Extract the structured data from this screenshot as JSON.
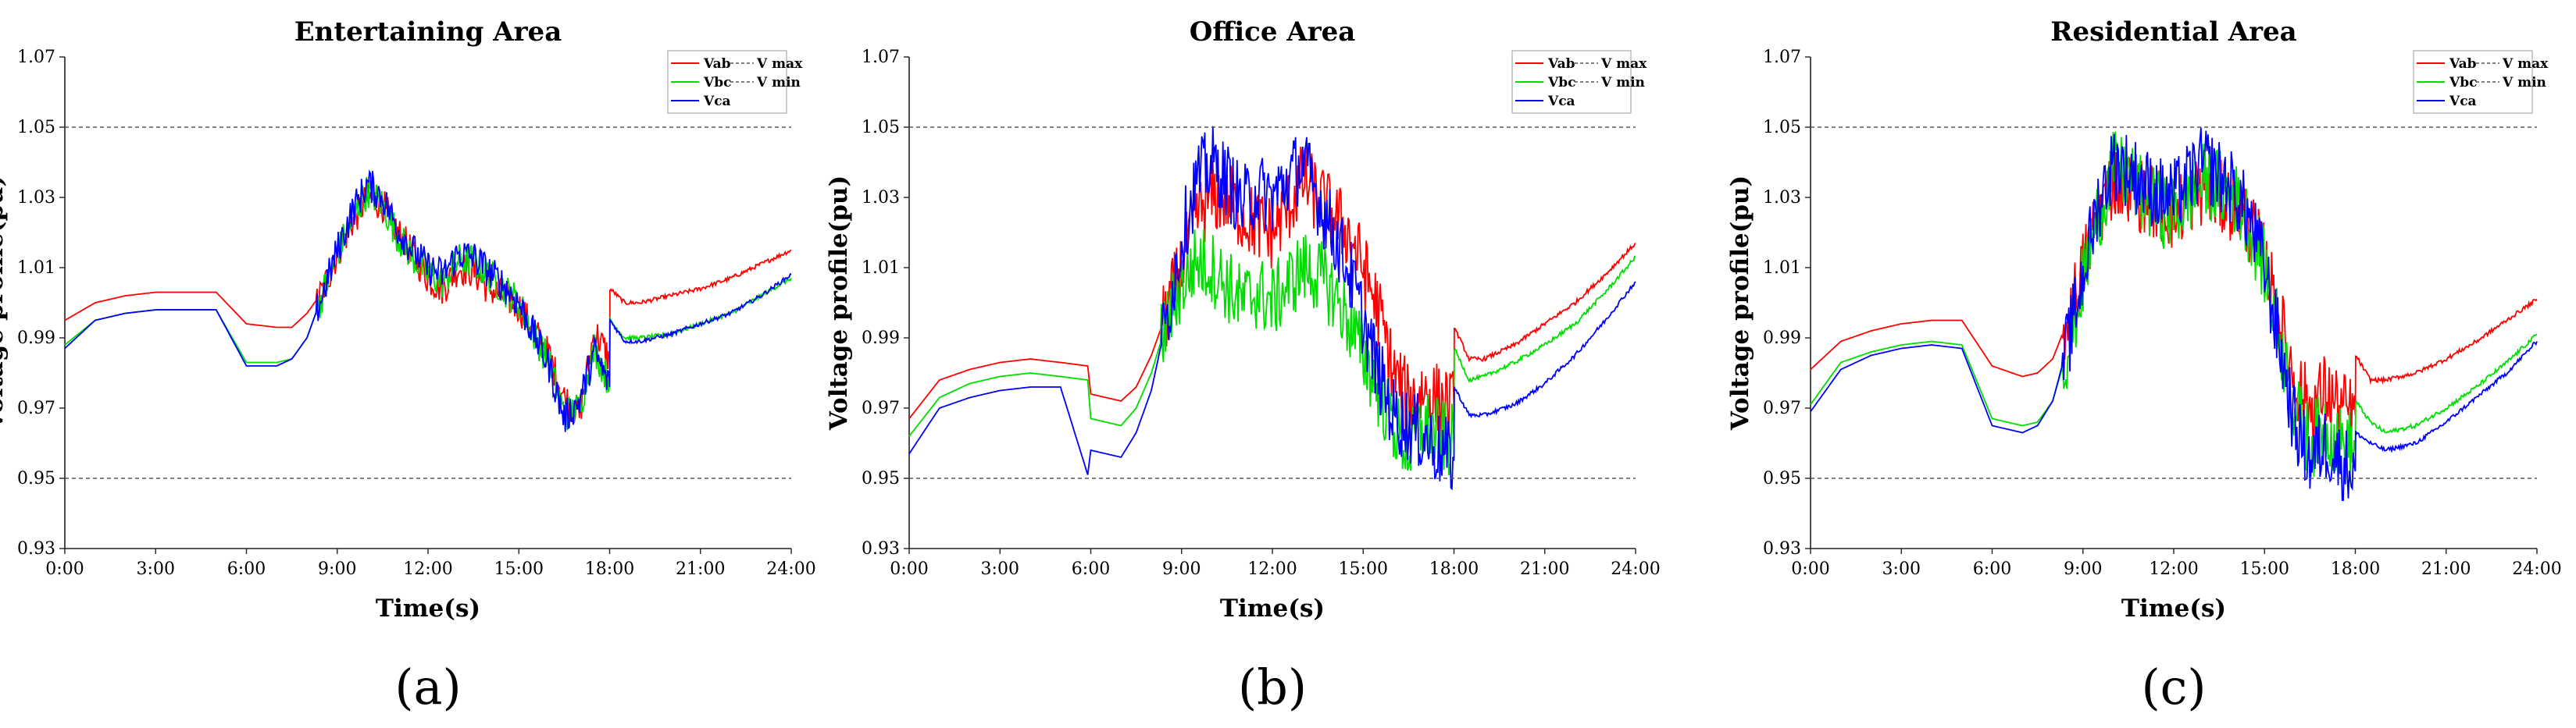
{
  "chart_data": [
    {
      "type": "line",
      "title": "Entertaining Area",
      "xlabel": "Time(s)",
      "ylabel": "Voltage profile(pu)",
      "panel_label": "(a)",
      "x_ticks": [
        "0:00",
        "3:00",
        "6:00",
        "9:00",
        "12:00",
        "15:00",
        "18:00",
        "21:00",
        "24:00"
      ],
      "y_ticks": [
        "0.93",
        "0.95",
        "0.97",
        "0.99",
        "1.01",
        "1.03",
        "1.05",
        "1.07"
      ],
      "xlim": [
        0,
        24
      ],
      "ylim": [
        0.93,
        1.07
      ],
      "grid": false,
      "legend_position": "top-right",
      "x_units": "hours",
      "series": [
        {
          "name": "Vab",
          "color": "#ff0000",
          "x": [
            0,
            1,
            2,
            3,
            4,
            5,
            6,
            7,
            7.5,
            8,
            8.5,
            9,
            9.5,
            10,
            10.5,
            11,
            11.5,
            12,
            12.5,
            13,
            13.5,
            14,
            14.5,
            15,
            15.5,
            16,
            16.5,
            17,
            17.5,
            18,
            18.01,
            18.5,
            19,
            20,
            21,
            22,
            23,
            24
          ],
          "y": [
            0.995,
            1.0,
            1.002,
            1.003,
            1.003,
            1.003,
            0.994,
            0.993,
            0.993,
            0.997,
            1.003,
            1.014,
            1.023,
            1.03,
            1.028,
            1.02,
            1.014,
            1.007,
            1.004,
            1.01,
            1.009,
            1.004,
            1.002,
            0.999,
            0.992,
            0.985,
            0.973,
            0.968,
            0.992,
            0.984,
            1.004,
            1.0,
            1.0,
            1.002,
            1.004,
            1.007,
            1.011,
            1.015
          ]
        },
        {
          "name": "Vbc",
          "color": "#00dd00",
          "x": [
            0,
            1,
            2,
            3,
            4,
            5,
            6,
            7,
            7.5,
            8,
            8.5,
            9,
            9.5,
            10,
            10.5,
            11,
            11.5,
            12,
            12.5,
            13,
            13.5,
            14,
            14.5,
            15,
            15.5,
            16,
            16.5,
            17,
            17.5,
            18,
            18.01,
            18.5,
            19,
            20,
            21,
            22,
            23,
            24
          ],
          "y": [
            0.988,
            0.995,
            0.997,
            0.998,
            0.998,
            0.998,
            0.983,
            0.983,
            0.984,
            0.99,
            1.002,
            1.014,
            1.024,
            1.032,
            1.028,
            1.019,
            1.013,
            1.008,
            1.006,
            1.012,
            1.012,
            1.008,
            1.004,
            1.0,
            0.991,
            0.983,
            0.968,
            0.97,
            0.987,
            0.977,
            0.995,
            0.99,
            0.99,
            0.991,
            0.994,
            0.997,
            1.002,
            1.007
          ]
        },
        {
          "name": "Vca",
          "color": "#0000ff",
          "x": [
            0,
            1,
            2,
            3,
            4,
            5,
            6,
            7,
            7.5,
            8,
            8.5,
            9,
            9.5,
            10,
            10.5,
            11,
            11.5,
            12,
            12.5,
            13,
            13.5,
            14,
            14.5,
            15,
            15.5,
            16,
            16.5,
            17,
            17.5,
            18,
            18.01,
            18.5,
            19,
            20,
            21,
            22,
            23,
            24
          ],
          "y": [
            0.987,
            0.995,
            0.997,
            0.998,
            0.998,
            0.998,
            0.982,
            0.982,
            0.984,
            0.99,
            1.002,
            1.015,
            1.026,
            1.034,
            1.03,
            1.021,
            1.015,
            1.01,
            1.008,
            1.014,
            1.013,
            1.009,
            1.005,
            1.0,
            0.991,
            0.982,
            0.967,
            0.972,
            0.986,
            0.976,
            0.995,
            0.989,
            0.989,
            0.991,
            0.994,
            0.997,
            1.002,
            1.008
          ]
        },
        {
          "name": "V max",
          "color": "#555555",
          "dashed": true,
          "x": [
            0,
            24
          ],
          "y": [
            1.05,
            1.05
          ]
        },
        {
          "name": "V min",
          "color": "#555555",
          "dashed": true,
          "x": [
            0,
            24
          ],
          "y": [
            0.95,
            0.95
          ]
        }
      ]
    },
    {
      "type": "line",
      "title": "Office Area",
      "xlabel": "Time(s)",
      "ylabel": "Voltage profile(pu)",
      "panel_label": "(b)",
      "x_ticks": [
        "0:00",
        "3:00",
        "6:00",
        "9:00",
        "12:00",
        "15:00",
        "18:00",
        "21:00",
        "24:00"
      ],
      "y_ticks": [
        "0.93",
        "0.95",
        "0.97",
        "0.99",
        "1.01",
        "1.03",
        "1.05",
        "1.07"
      ],
      "xlim": [
        0,
        24
      ],
      "ylim": [
        0.93,
        1.07
      ],
      "grid": false,
      "legend_position": "top-right",
      "x_units": "hours",
      "series": [
        {
          "name": "Vab",
          "color": "#ff0000",
          "x": [
            0,
            1,
            2,
            3,
            4,
            5,
            5.9,
            6.0,
            7,
            7.5,
            8,
            8.5,
            9,
            9.5,
            10,
            10.5,
            11,
            11.5,
            12,
            12.5,
            13,
            13.5,
            14,
            14.5,
            15,
            15.5,
            16,
            16.5,
            17,
            17.5,
            18,
            18.01,
            18.5,
            19,
            20,
            21,
            22,
            23,
            24
          ],
          "y": [
            0.967,
            0.978,
            0.981,
            0.983,
            0.984,
            0.983,
            0.982,
            0.974,
            0.972,
            0.976,
            0.985,
            0.997,
            1.01,
            1.025,
            1.03,
            1.03,
            1.025,
            1.022,
            1.02,
            1.027,
            1.035,
            1.03,
            1.025,
            1.02,
            1.01,
            0.998,
            0.98,
            0.972,
            0.975,
            0.972,
            0.97,
            0.993,
            0.984,
            0.984,
            0.988,
            0.994,
            1.0,
            1.008,
            1.017
          ]
        },
        {
          "name": "Vbc",
          "color": "#00dd00",
          "x": [
            0,
            1,
            2,
            3,
            4,
            5,
            5.9,
            6.0,
            7,
            7.5,
            8,
            8.5,
            9,
            9.5,
            10,
            10.5,
            11,
            11.5,
            12,
            12.5,
            13,
            13.5,
            14,
            14.5,
            15,
            15.5,
            16,
            16.5,
            17,
            17.5,
            18,
            18.01,
            18.5,
            19,
            20,
            21,
            22,
            23,
            24
          ],
          "y": [
            0.962,
            0.973,
            0.977,
            0.979,
            0.98,
            0.979,
            0.978,
            0.967,
            0.965,
            0.97,
            0.98,
            0.994,
            1.005,
            1.012,
            1.01,
            1.005,
            1.0,
            1.003,
            1.0,
            1.005,
            1.01,
            1.008,
            1.003,
            0.995,
            0.985,
            0.975,
            0.965,
            0.958,
            0.965,
            0.962,
            0.96,
            0.987,
            0.978,
            0.979,
            0.983,
            0.988,
            0.994,
            1.003,
            1.013
          ]
        },
        {
          "name": "Vca",
          "color": "#0000ff",
          "x": [
            0,
            1,
            2,
            3,
            4,
            5,
            5.9,
            6.0,
            7,
            7.5,
            8,
            8.5,
            9,
            9.5,
            10,
            10.5,
            11,
            11.5,
            12,
            12.5,
            13,
            13.5,
            14,
            14.5,
            15,
            15.5,
            16,
            16.5,
            17,
            17.5,
            18,
            18.01,
            18.5,
            19,
            20,
            21,
            22,
            23,
            24
          ],
          "y": [
            0.957,
            0.97,
            0.973,
            0.975,
            0.976,
            0.976,
            0.951,
            0.958,
            0.956,
            0.963,
            0.975,
            0.995,
            1.018,
            1.035,
            1.04,
            1.035,
            1.028,
            1.032,
            1.03,
            1.035,
            1.04,
            1.03,
            1.02,
            1.01,
            0.995,
            0.98,
            0.968,
            0.965,
            0.962,
            0.958,
            0.955,
            0.976,
            0.968,
            0.968,
            0.971,
            0.977,
            0.985,
            0.995,
            1.006
          ]
        },
        {
          "name": "V max",
          "color": "#555555",
          "dashed": true,
          "x": [
            0,
            24
          ],
          "y": [
            1.05,
            1.05
          ]
        },
        {
          "name": "V min",
          "color": "#555555",
          "dashed": true,
          "x": [
            0,
            24
          ],
          "y": [
            0.95,
            0.95
          ]
        }
      ]
    },
    {
      "type": "line",
      "title": "Residential Area",
      "xlabel": "Time(s)",
      "ylabel": "Voltage profile(pu)",
      "panel_label": "(c)",
      "x_ticks": [
        "0:00",
        "3:00",
        "6:00",
        "9:00",
        "12:00",
        "15:00",
        "18:00",
        "21:00",
        "24:00"
      ],
      "y_ticks": [
        "0.93",
        "0.95",
        "0.97",
        "0.99",
        "1.01",
        "1.03",
        "1.05",
        "1.07"
      ],
      "xlim": [
        0,
        24
      ],
      "ylim": [
        0.93,
        1.07
      ],
      "grid": false,
      "legend_position": "top-right",
      "x_units": "hours",
      "series": [
        {
          "name": "Vab",
          "color": "#ff0000",
          "x": [
            0,
            1,
            2,
            3,
            4,
            5,
            6,
            7,
            7.5,
            8,
            8.5,
            9,
            9.5,
            10,
            10.5,
            11,
            11.5,
            12,
            12.5,
            13,
            13.5,
            14,
            14.5,
            15,
            15.5,
            16,
            16.5,
            17,
            17.5,
            18,
            18.01,
            18.5,
            19,
            20,
            21,
            22,
            23,
            24
          ],
          "y": [
            0.981,
            0.989,
            0.992,
            0.994,
            0.995,
            0.995,
            0.982,
            0.979,
            0.98,
            0.984,
            0.995,
            1.01,
            1.025,
            1.035,
            1.034,
            1.03,
            1.028,
            1.025,
            1.03,
            1.033,
            1.03,
            1.028,
            1.022,
            1.012,
            0.995,
            0.978,
            0.97,
            0.975,
            0.97,
            0.968,
            0.985,
            0.978,
            0.978,
            0.98,
            0.984,
            0.989,
            0.995,
            1.001
          ]
        },
        {
          "name": "Vbc",
          "color": "#00dd00",
          "x": [
            0,
            1,
            2,
            3,
            4,
            5,
            6,
            7,
            7.5,
            8,
            8.5,
            9,
            9.5,
            10,
            10.5,
            11,
            11.5,
            12,
            12.5,
            13,
            13.5,
            14,
            14.5,
            15,
            15.5,
            16,
            16.5,
            17,
            17.5,
            18,
            18.01,
            18.5,
            19,
            20,
            21,
            22,
            23,
            24
          ],
          "y": [
            0.971,
            0.983,
            0.986,
            0.988,
            0.989,
            0.988,
            0.967,
            0.965,
            0.966,
            0.972,
            0.987,
            1.006,
            1.025,
            1.038,
            1.036,
            1.03,
            1.027,
            1.025,
            1.03,
            1.035,
            1.033,
            1.03,
            1.022,
            1.01,
            0.99,
            0.97,
            0.96,
            0.965,
            0.96,
            0.958,
            0.972,
            0.966,
            0.963,
            0.965,
            0.97,
            0.976,
            0.983,
            0.991
          ]
        },
        {
          "name": "Vca",
          "color": "#0000ff",
          "x": [
            0,
            1,
            2,
            3,
            4,
            5,
            6,
            7,
            7.5,
            8,
            8.5,
            9,
            9.5,
            10,
            10.5,
            11,
            11.5,
            12,
            12.5,
            13,
            13.5,
            14,
            14.5,
            15,
            15.5,
            16,
            16.5,
            17,
            17.5,
            18,
            18.01,
            18.5,
            19,
            20,
            21,
            22,
            23,
            24
          ],
          "y": [
            0.969,
            0.981,
            0.985,
            0.987,
            0.988,
            0.987,
            0.965,
            0.963,
            0.965,
            0.972,
            0.988,
            1.008,
            1.028,
            1.04,
            1.038,
            1.034,
            1.031,
            1.03,
            1.035,
            1.04,
            1.036,
            1.032,
            1.024,
            1.01,
            0.988,
            0.965,
            0.955,
            0.96,
            0.955,
            0.952,
            0.963,
            0.96,
            0.958,
            0.96,
            0.966,
            0.973,
            0.98,
            0.989
          ]
        },
        {
          "name": "V max",
          "color": "#555555",
          "dashed": true,
          "x": [
            0,
            24
          ],
          "y": [
            1.05,
            1.05
          ]
        },
        {
          "name": "V min",
          "color": "#555555",
          "dashed": true,
          "x": [
            0,
            24
          ],
          "y": [
            0.95,
            0.95
          ]
        }
      ]
    }
  ]
}
